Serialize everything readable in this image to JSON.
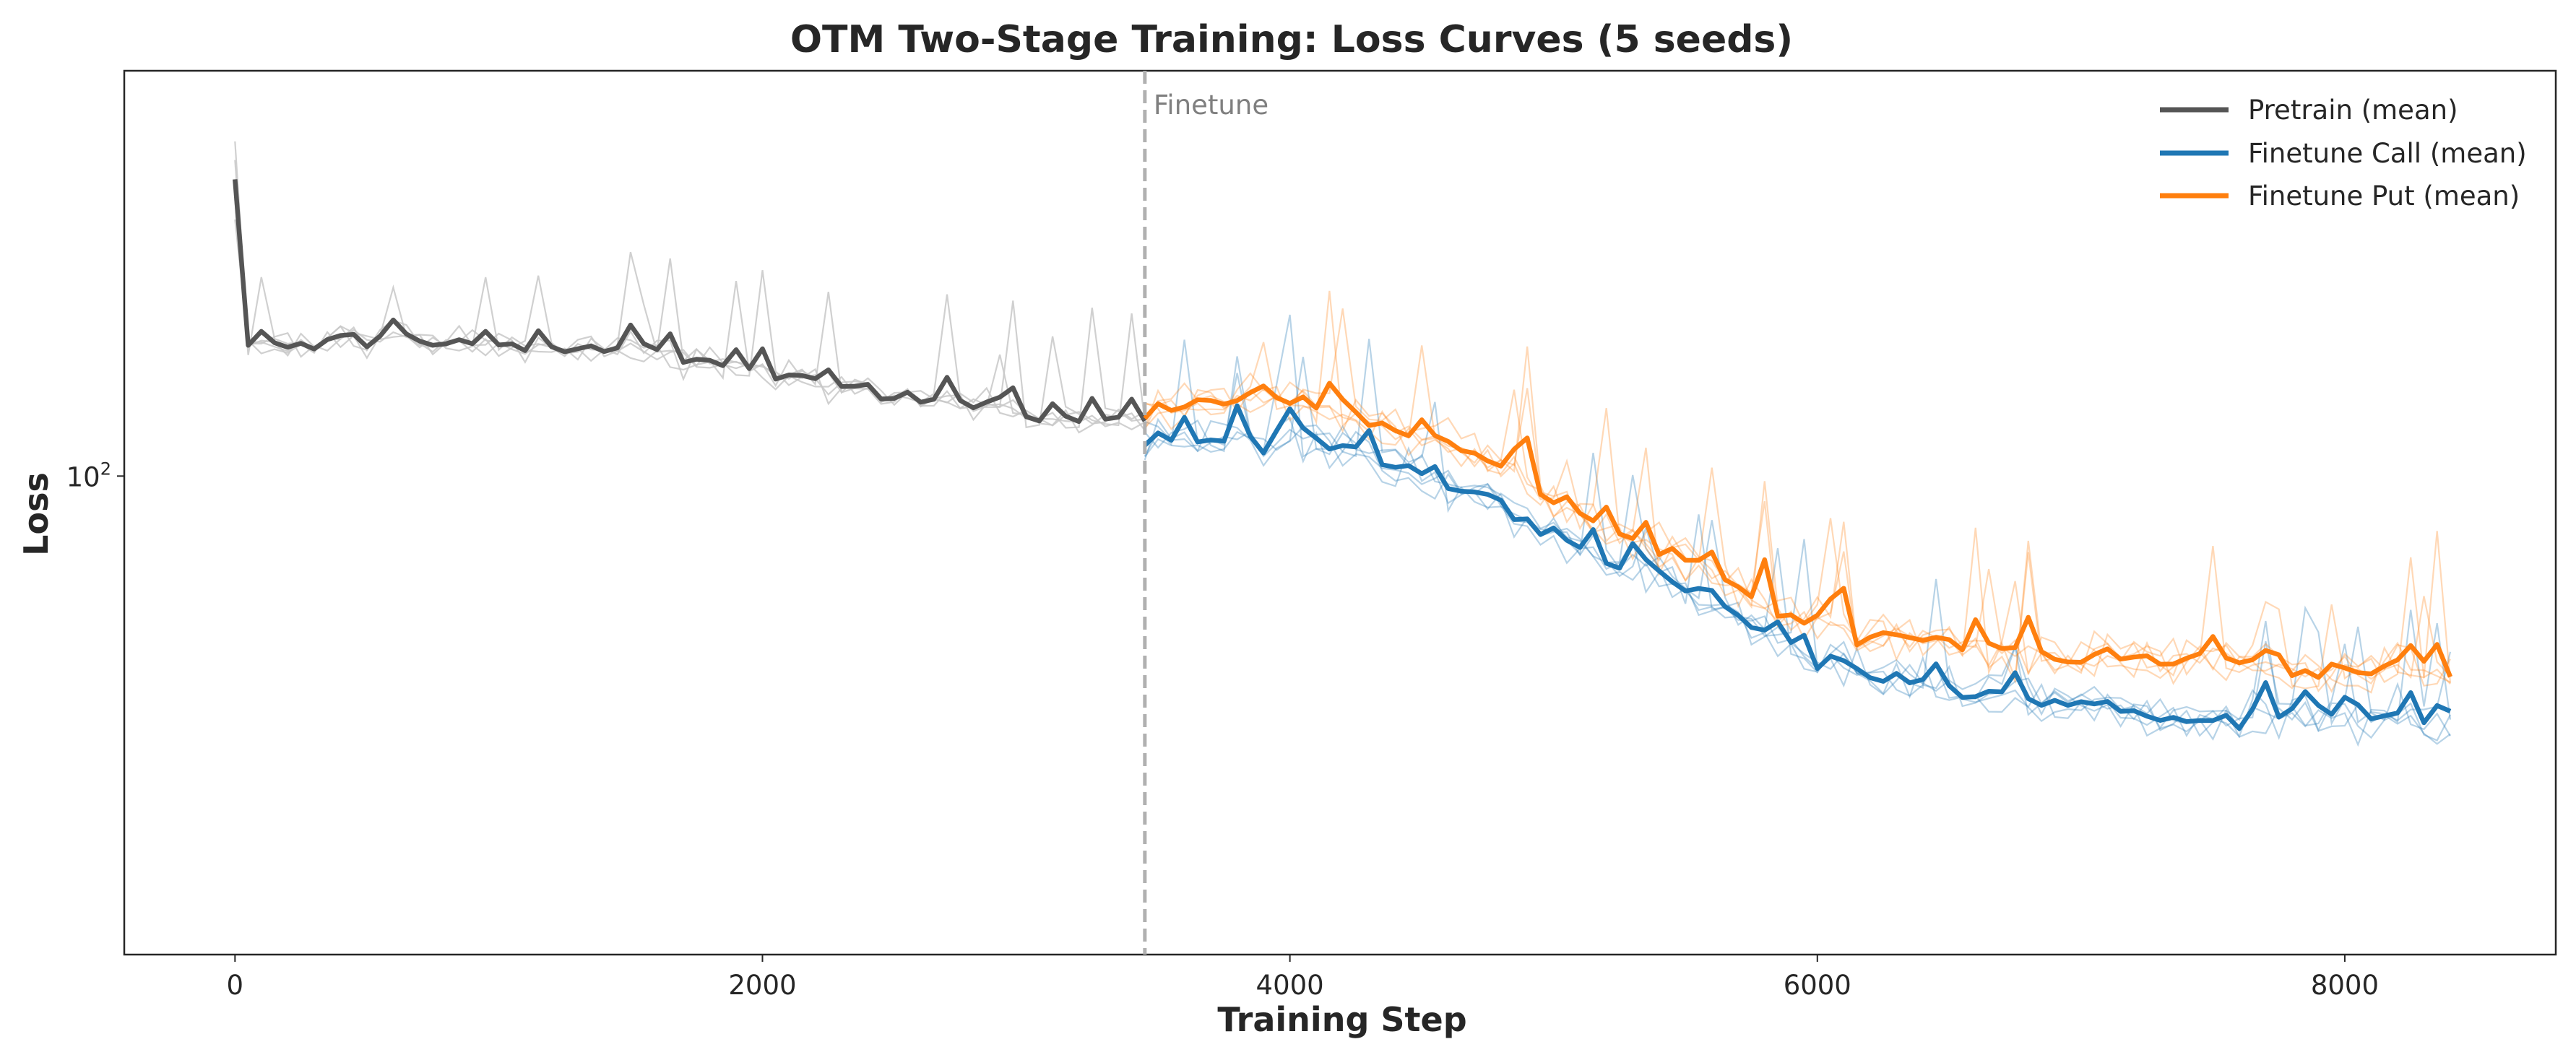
{
  "chart_data": {
    "type": "line",
    "title": "OTM Two-Stage Training: Loss Curves (5 seeds)",
    "xlabel": "Training Step",
    "ylabel": "Loss",
    "xlim": [
      -420,
      8800
    ],
    "ylim_log": [
      52,
      174
    ],
    "y_scale": "log",
    "x_ticks": [
      0,
      2000,
      4000,
      6000,
      8000
    ],
    "y_ticks": [
      {
        "value": 100,
        "base": "10",
        "exp": "2"
      }
    ],
    "grid": false,
    "legend_position": "top-right",
    "legend": [
      "Pretrain (mean)",
      "Finetune Call (mean)",
      "Finetune Put (mean)"
    ],
    "colors": {
      "pretrain": "#555555",
      "pretrain_seed": "#c8c8c8",
      "call": "#1f77b4",
      "put": "#ff7f0e",
      "vline": "#b0b0b0"
    },
    "annotations": [
      {
        "text": "Finetune",
        "x": 3450
      }
    ],
    "vline_x": 3450,
    "series_anchors": {
      "pretrain": {
        "x": [
          0,
          50,
          100,
          200,
          300,
          400,
          500,
          600,
          700,
          800,
          900,
          1000,
          1100,
          1200,
          1300,
          1400,
          1500,
          1600,
          1700,
          1800,
          1900,
          2000,
          2100,
          2200,
          2300,
          2400,
          2500,
          2600,
          2700,
          2800,
          2900,
          3000,
          3100,
          3200,
          3300,
          3400,
          3450
        ],
        "y": [
          150,
          119,
          120,
          119,
          120,
          121,
          120,
          121,
          121,
          120,
          120,
          120,
          119,
          118,
          119,
          119,
          120,
          119,
          117,
          117,
          116,
          115,
          115,
          114,
          113,
          113,
          112,
          111,
          111,
          110,
          110,
          109,
          108,
          108,
          108,
          108,
          108
        ]
      },
      "call": {
        "x": [
          3450,
          3700,
          4000,
          4200,
          4400,
          4600,
          4800,
          5000,
          5200,
          5400,
          5600,
          5800,
          6000,
          6300,
          6600,
          7000,
          7400,
          7800,
          8200,
          8400
        ],
        "y": [
          105,
          105,
          105,
          104,
          102,
          98,
          96,
          92,
          89,
          87,
          84,
          81,
          78,
          76,
          74,
          73,
          72,
          72,
          72,
          71
        ]
      },
      "put": {
        "x": [
          3450,
          3700,
          4000,
          4200,
          4400,
          4600,
          4800,
          5000,
          5200,
          5400,
          5600,
          5800,
          6000,
          6300,
          6600,
          7000,
          7400,
          7800,
          8200,
          8400
        ],
        "y": [
          110,
          111,
          111,
          109,
          107,
          104,
          102,
          97,
          93,
          91,
          88,
          84,
          82,
          80,
          79,
          78,
          78,
          77,
          77,
          77
        ]
      }
    },
    "series": [
      {
        "name": "Pretrain (mean)",
        "key": "pretrain"
      },
      {
        "name": "Finetune Call (mean)",
        "key": "call"
      },
      {
        "name": "Finetune Put (mean)",
        "key": "put"
      }
    ]
  }
}
